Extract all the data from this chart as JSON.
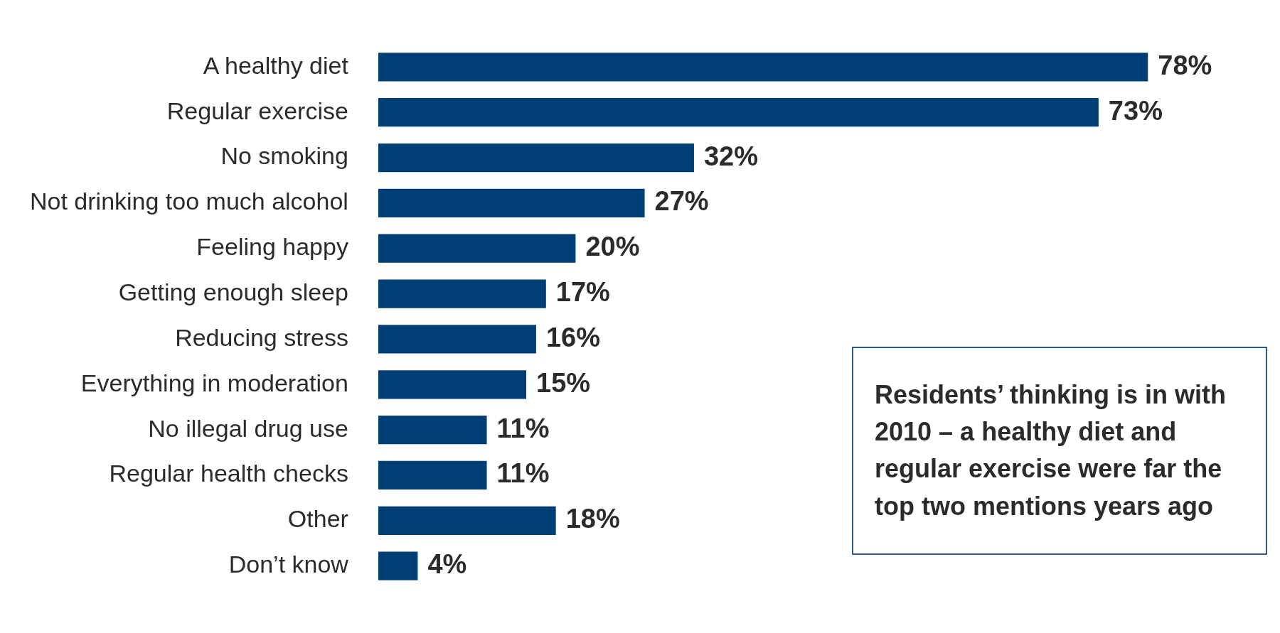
{
  "chart_data": {
    "type": "bar",
    "orientation": "horizontal",
    "categories": [
      "A healthy diet",
      "Regular exercise",
      "No smoking",
      "Not drinking too much alcohol",
      "Feeling happy",
      "Getting enough sleep",
      "Reducing stress",
      "Everything in moderation",
      "No illegal drug use",
      "Regular health checks",
      "Other",
      "Don’t know"
    ],
    "values": [
      78,
      73,
      32,
      27,
      20,
      17,
      16,
      15,
      11,
      11,
      18,
      4
    ],
    "color": "#003f75",
    "value_labels": [
      "78%",
      "73%",
      "32%",
      "27%",
      "20%",
      "17%",
      "16%",
      "15%",
      "11%",
      "11%",
      "18%",
      "4%"
    ],
    "annotations": [
      "Residents’ thinking is in with 2010 – a healthy diet and regular exercise were far the top two mentions years ago"
    ],
    "legend": false
  }
}
